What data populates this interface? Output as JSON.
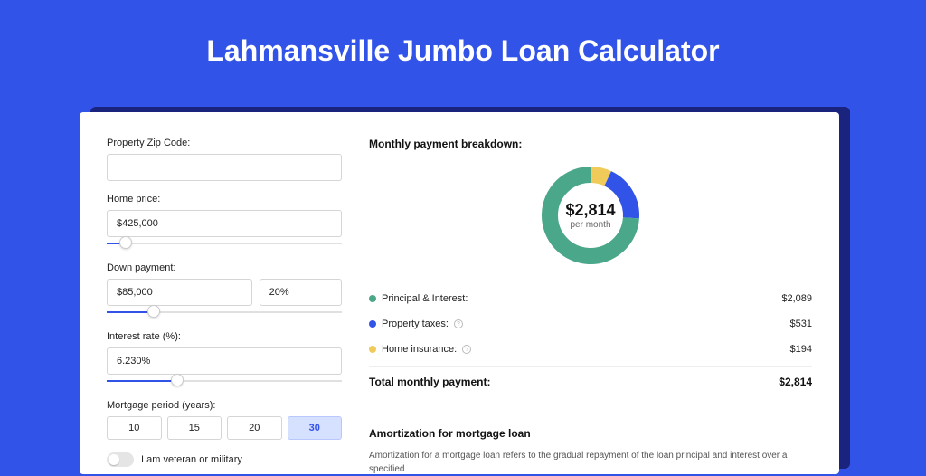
{
  "page": {
    "title": "Lahmansville Jumbo Loan Calculator"
  },
  "colors": {
    "bg": "#3253e8",
    "shadow": "#1a237e",
    "card": "#ffffff",
    "pi": "#4aa789",
    "tax": "#3253e8",
    "ins": "#f0cb5a"
  },
  "form": {
    "zip": {
      "label": "Property Zip Code:",
      "value": ""
    },
    "home_price": {
      "label": "Home price:",
      "value": "$425,000",
      "slider_pct": 8
    },
    "down_payment": {
      "label": "Down payment:",
      "amount": "$85,000",
      "percent": "20%",
      "slider_pct": 20
    },
    "interest": {
      "label": "Interest rate (%):",
      "value": "6.230%",
      "slider_pct": 30
    },
    "period": {
      "label": "Mortgage period (years):",
      "options": [
        "10",
        "15",
        "20",
        "30"
      ],
      "active": 3
    },
    "veteran": {
      "label": "I am veteran or military"
    }
  },
  "breakdown": {
    "title": "Monthly payment breakdown:",
    "center_amount": "$2,814",
    "center_sub": "per month",
    "donut": {
      "pi_pct": 74,
      "tax_pct": 19,
      "ins_pct": 7
    },
    "lines": [
      {
        "label": "Principal & Interest:",
        "value": "$2,089",
        "color": "#4aa789",
        "has_info": false
      },
      {
        "label": "Property taxes:",
        "value": "$531",
        "color": "#3253e8",
        "has_info": true
      },
      {
        "label": "Home insurance:",
        "value": "$194",
        "color": "#f0cb5a",
        "has_info": true
      }
    ],
    "total_label": "Total monthly payment:",
    "total_value": "$2,814"
  },
  "amort": {
    "title": "Amortization for mortgage loan",
    "body": "Amortization for a mortgage loan refers to the gradual repayment of the loan principal and interest over a specified"
  }
}
